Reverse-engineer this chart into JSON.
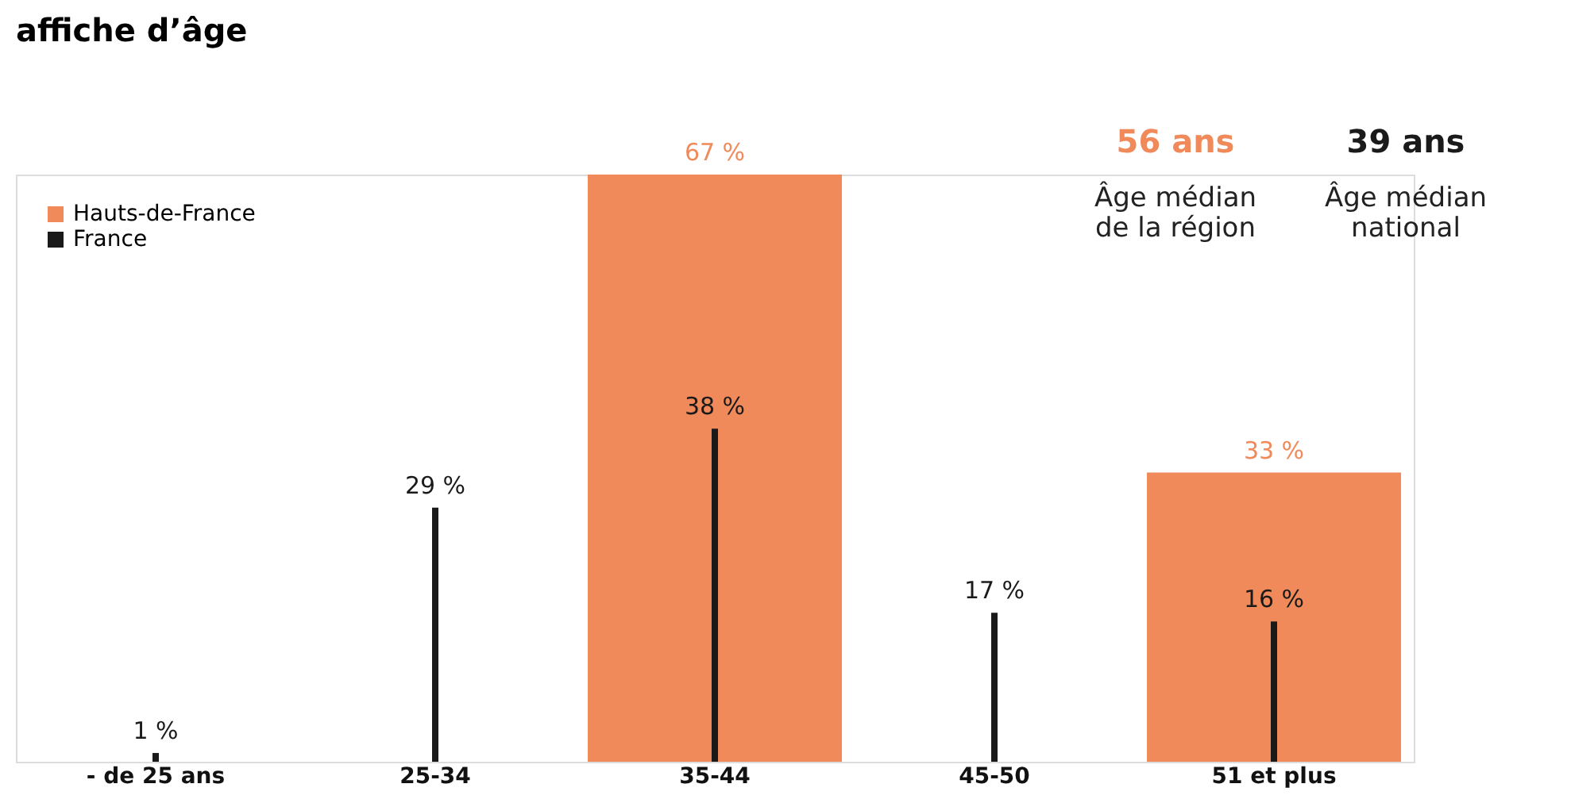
{
  "chart_data": {
    "type": "bar",
    "title": "affiche d’âge",
    "categories": [
      "- de 25 ans",
      "25-34",
      "35-44",
      "45-50",
      "51 et plus"
    ],
    "series": [
      {
        "name": "Hauts-de-France",
        "color": "#f08a5a",
        "values": [
          null,
          null,
          67,
          null,
          33
        ],
        "value_labels": [
          null,
          null,
          "67 %",
          null,
          "33 %"
        ]
      },
      {
        "name": "France",
        "color": "#1a1a1a",
        "values": [
          1,
          29,
          38,
          17,
          16
        ],
        "value_labels": [
          "1 %",
          "29 %",
          "38 %",
          "17 %",
          "16 %"
        ]
      }
    ],
    "legend": "top left",
    "grid": false,
    "tick_labels": "x",
    "annotations": [
      "56 ans",
      "Âge médian de la région",
      "39 ans",
      "Âge médian national"
    ]
  }
}
